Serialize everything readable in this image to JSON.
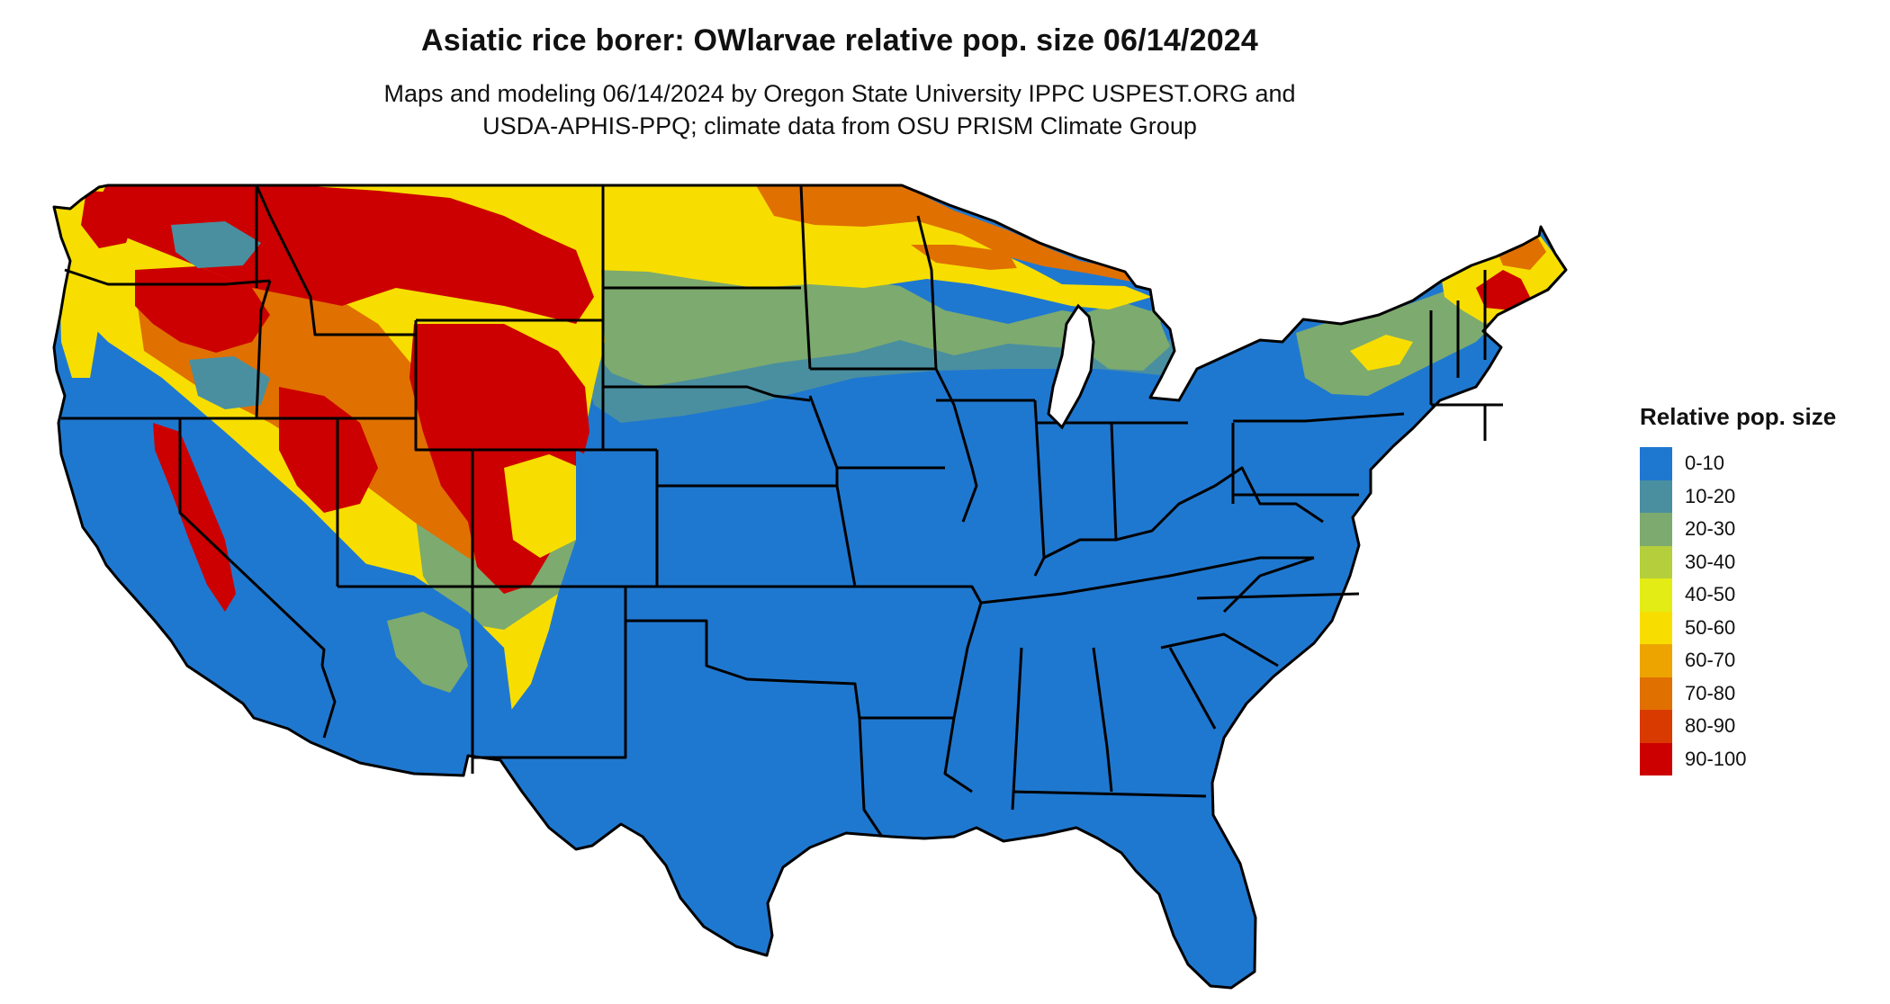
{
  "title": "Asiatic rice borer: OWlarvae relative pop. size 06/14/2024",
  "subtitle": [
    "Maps and modeling 06/14/2024 by Oregon State University IPPC USPEST.ORG and",
    "USDA-APHIS-PPQ; climate data from OSU PRISM Climate Group"
  ],
  "legend": {
    "title": "Relative pop. size",
    "classes": [
      {
        "label": "0-10",
        "color": "#1F78D0"
      },
      {
        "label": "10-20",
        "color": "#4A8FA0"
      },
      {
        "label": "20-30",
        "color": "#7DAA6E"
      },
      {
        "label": "30-40",
        "color": "#B5CE3C"
      },
      {
        "label": "40-50",
        "color": "#E4EC16"
      },
      {
        "label": "50-60",
        "color": "#F7DE00"
      },
      {
        "label": "60-70",
        "color": "#EDA400"
      },
      {
        "label": "70-80",
        "color": "#E07000"
      },
      {
        "label": "80-90",
        "color": "#D93A00"
      },
      {
        "label": "90-100",
        "color": "#CC0000"
      }
    ]
  }
}
